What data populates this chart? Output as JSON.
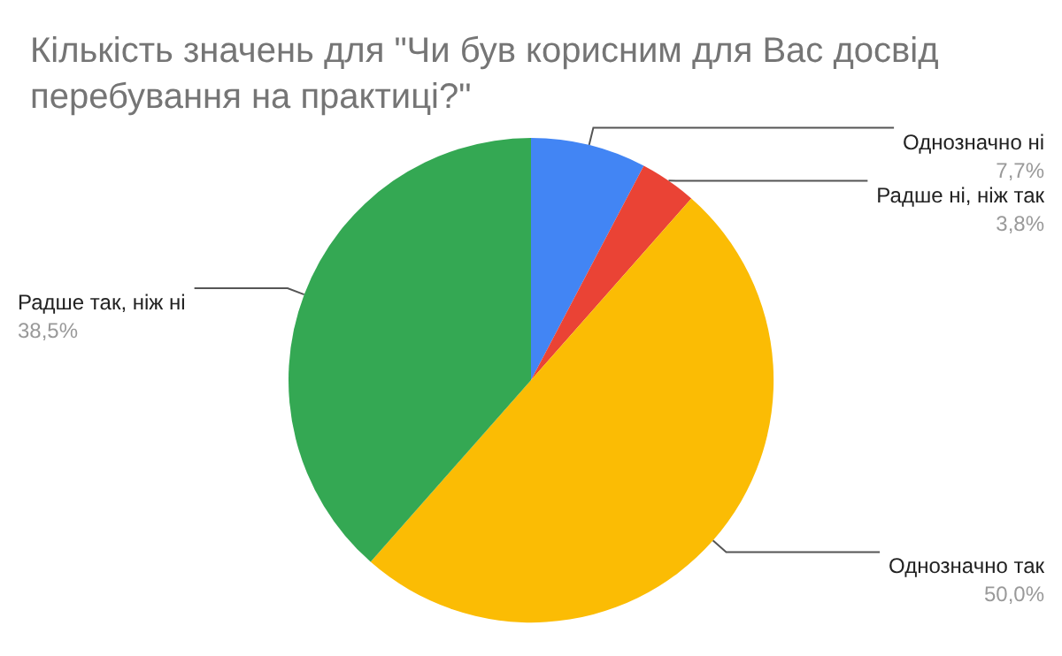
{
  "chart_data": {
    "type": "pie",
    "title": "Кількість значень для \"Чи був корисним для Вас досвід перебування на практиці?\"",
    "categories": [
      "Однозначно ні",
      "Радше ні, ніж так",
      "Однозначно так",
      "Радше так, ніж ні"
    ],
    "values": [
      7.7,
      3.8,
      50.0,
      38.5
    ],
    "colors": [
      "#4285f4",
      "#ea4335",
      "#fbbc04",
      "#34a853"
    ],
    "value_labels": [
      "7,7%",
      "3,8%",
      "50,0%",
      "38,5%"
    ],
    "legend": false
  }
}
